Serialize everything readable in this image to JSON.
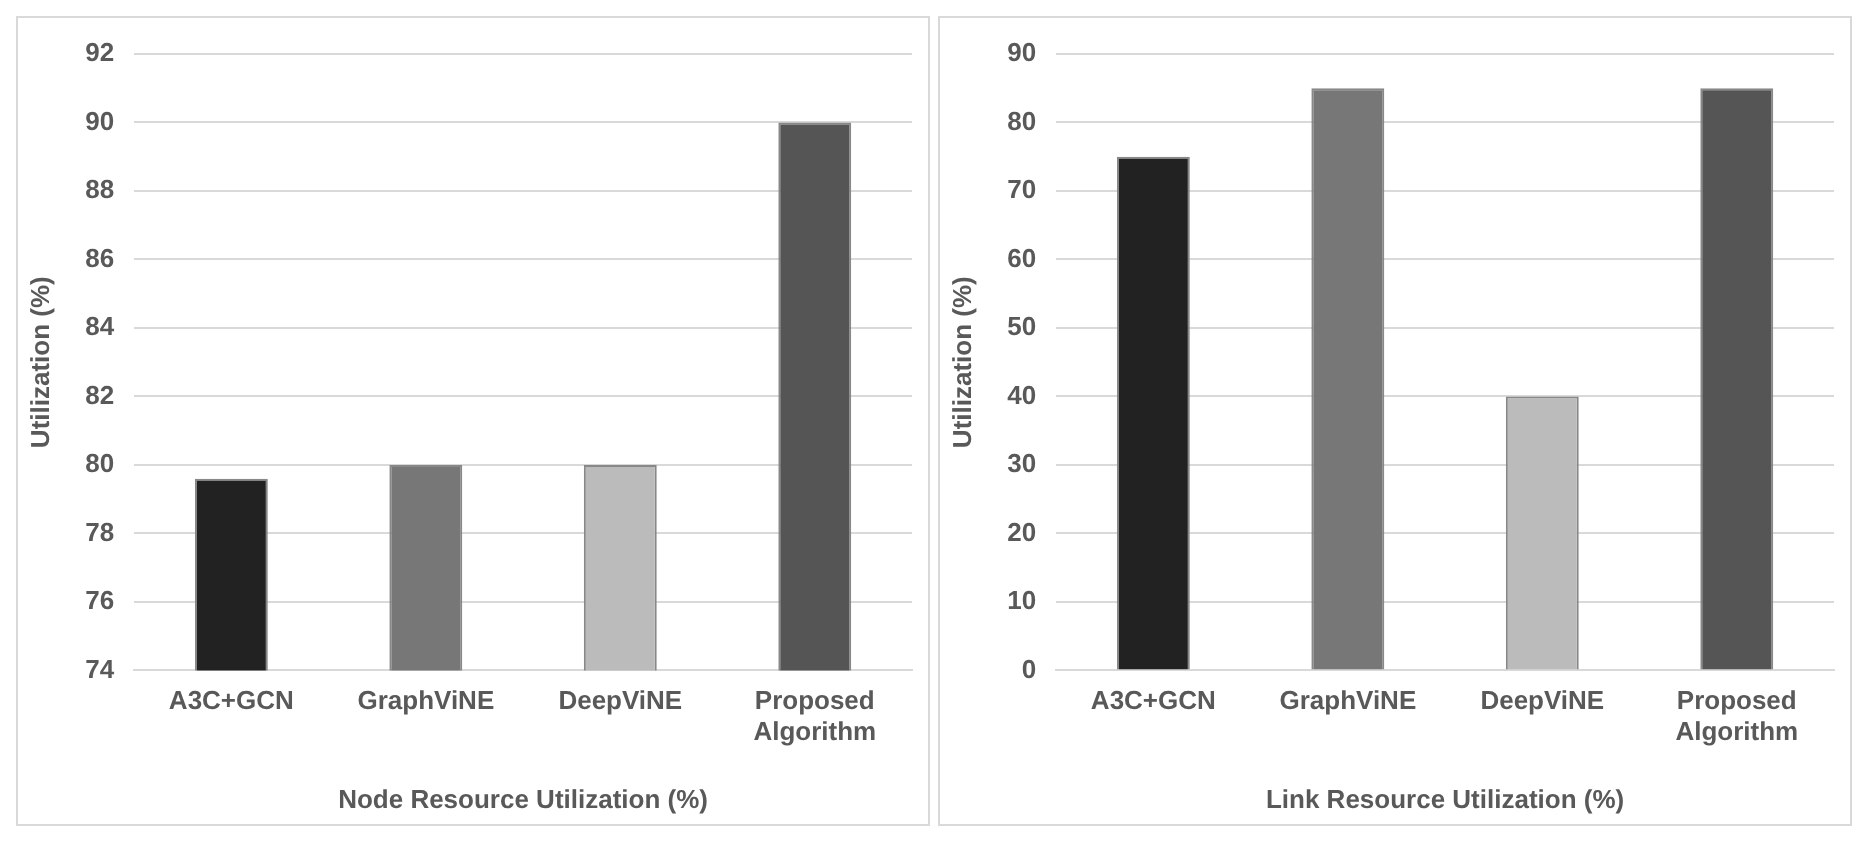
{
  "chart_data": [
    {
      "type": "bar",
      "xlabel": "Node Resource Utilization (%)",
      "ylabel": "Utilization (%)",
      "categories": [
        "A3C+GCN",
        "GraphViNE",
        "DeepViNE",
        "Proposed Algorithm"
      ],
      "values": [
        79.6,
        80,
        80,
        90
      ],
      "colors": [
        "#222222",
        "#777777",
        "#bbbbbb",
        "#555555"
      ],
      "ylim": [
        74,
        92
      ],
      "yticks": [
        74,
        76,
        78,
        80,
        82,
        84,
        86,
        88,
        90,
        92
      ],
      "grid": "y",
      "legend": false
    },
    {
      "type": "bar",
      "xlabel": "Link Resource Utilization (%)",
      "ylabel": "Utilization (%)",
      "categories": [
        "A3C+GCN",
        "GraphViNE",
        "DeepViNE",
        "Proposed Algorithm"
      ],
      "values": [
        75,
        85,
        40,
        85
      ],
      "colors": [
        "#222222",
        "#777777",
        "#bbbbbb",
        "#555555"
      ],
      "ylim": [
        0,
        90
      ],
      "yticks": [
        0,
        10,
        20,
        30,
        40,
        50,
        60,
        70,
        80,
        90
      ],
      "grid": "y",
      "legend": false
    }
  ]
}
